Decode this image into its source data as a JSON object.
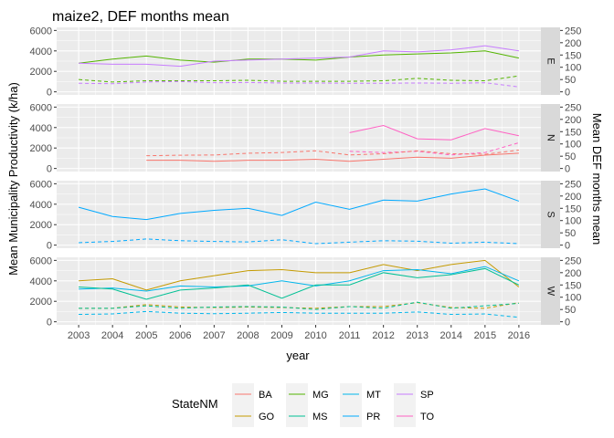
{
  "chart_data": {
    "type": "line",
    "title": "maize2, DEF months mean",
    "xlabel": "year",
    "ylabel": "Mean Municipality Productivity (k/ha)",
    "ylabel_right": "Mean DEF months mean",
    "x": [
      2003,
      2004,
      2005,
      2006,
      2007,
      2008,
      2009,
      2010,
      2011,
      2012,
      2013,
      2014,
      2015,
      2016
    ],
    "ylim_left": [
      0,
      6000
    ],
    "ylim_right": [
      0,
      250
    ],
    "yticks_left": [
      "0",
      "2000",
      "4000",
      "6000"
    ],
    "yticks_right": [
      "0",
      "50",
      "100",
      "150",
      "200",
      "250"
    ],
    "legend": {
      "title": "StateNM",
      "position": "bottom",
      "entries": [
        {
          "name": "BA",
          "color": "#F8766D"
        },
        {
          "name": "GO",
          "color": "#C49A00"
        },
        {
          "name": "MG",
          "color": "#53B400"
        },
        {
          "name": "MS",
          "color": "#00C094"
        },
        {
          "name": "MT",
          "color": "#00B6EB"
        },
        {
          "name": "PR",
          "color": "#00A9FF"
        },
        {
          "name": "SP",
          "color": "#C77CFF"
        },
        {
          "name": "TO",
          "color": "#FF61C3"
        }
      ]
    },
    "panels": [
      {
        "label": "E",
        "series": [
          {
            "name": "MG",
            "color": "#53B400",
            "dash": false,
            "values": [
              2800,
              3200,
              3500,
              3100,
              2900,
              3200,
              3200,
              3100,
              3400,
              3600,
              3700,
              3800,
              4000,
              3300
            ]
          },
          {
            "name": "SP",
            "color": "#C77CFF",
            "dash": false,
            "values": [
              2800,
              2700,
              2700,
              2500,
              3000,
              3100,
              3200,
              3300,
              3400,
              4000,
              3900,
              4100,
              4500,
              4000
            ]
          },
          {
            "name": "MG",
            "color": "#53B400",
            "dash": true,
            "values": [
              50,
              40,
              45,
              45,
              45,
              47,
              43,
              43,
              43,
              45,
              55,
              47,
              45,
              65
            ]
          },
          {
            "name": "SP",
            "color": "#C77CFF",
            "dash": true,
            "values": [
              35,
              33,
              40,
              42,
              37,
              38,
              36,
              36,
              35,
              35,
              36,
              35,
              37,
              20
            ]
          }
        ]
      },
      {
        "label": "N",
        "series": [
          {
            "name": "TO",
            "color": "#FF61C3",
            "dash": false,
            "values": [
              null,
              null,
              null,
              null,
              null,
              null,
              null,
              null,
              3500,
              4200,
              2900,
              2800,
              3900,
              3200
            ]
          },
          {
            "name": "BA",
            "color": "#F8766D",
            "dash": false,
            "values": [
              null,
              null,
              800,
              800,
              700,
              800,
              800,
              900,
              700,
              900,
              1100,
              1000,
              1300,
              1500
            ]
          },
          {
            "name": "TO",
            "color": "#FF61C3",
            "dash": true,
            "values": [
              null,
              null,
              null,
              null,
              null,
              null,
              null,
              null,
              70,
              65,
              70,
              55,
              65,
              105
            ]
          },
          {
            "name": "BA",
            "color": "#F8766D",
            "dash": true,
            "values": [
              null,
              null,
              52,
              54,
              55,
              62,
              65,
              72,
              55,
              60,
              72,
              60,
              58,
              75
            ]
          }
        ]
      },
      {
        "label": "S",
        "series": [
          {
            "name": "PR",
            "color": "#00A9FF",
            "dash": false,
            "values": [
              3700,
              2800,
              2500,
              3100,
              3400,
              3600,
              2900,
              4200,
              3500,
              4400,
              4300,
              5000,
              5500,
              4300
            ]
          },
          {
            "name": "PR",
            "color": "#00A9FF",
            "dash": true,
            "values": [
              10,
              15,
              25,
              18,
              15,
              13,
              22,
              6,
              12,
              18,
              16,
              8,
              12,
              6
            ]
          }
        ]
      },
      {
        "label": "W",
        "series": [
          {
            "name": "GO",
            "color": "#C49A00",
            "dash": false,
            "values": [
              4000,
              4200,
              3100,
              4000,
              4500,
              5000,
              5100,
              4800,
              4800,
              5600,
              5000,
              5600,
              6000,
              3400
            ]
          },
          {
            "name": "MT",
            "color": "#00B6EB",
            "dash": false,
            "values": [
              3200,
              3300,
              3000,
              3500,
              3400,
              3500,
              4000,
              3500,
              4000,
              5000,
              5100,
              4700,
              5400,
              4000
            ]
          },
          {
            "name": "MS",
            "color": "#00C094",
            "dash": false,
            "values": [
              3400,
              3200,
              2200,
              3100,
              3300,
              3600,
              2300,
              3600,
              3600,
              4800,
              4300,
              4600,
              5200,
              3600
            ]
          },
          {
            "name": "GO",
            "color": "#C49A00",
            "dash": true,
            "values": [
              55,
              55,
              70,
              60,
              58,
              60,
              58,
              55,
              62,
              62,
              78,
              58,
              55,
              78
            ]
          },
          {
            "name": "MS",
            "color": "#00C094",
            "dash": true,
            "values": [
              55,
              55,
              65,
              55,
              60,
              62,
              60,
              50,
              62,
              55,
              80,
              55,
              65,
              75
            ]
          },
          {
            "name": "MT",
            "color": "#00B6EB",
            "dash": true,
            "values": [
              30,
              32,
              42,
              35,
              33,
              35,
              38,
              35,
              35,
              35,
              40,
              30,
              32,
              18
            ]
          }
        ]
      }
    ]
  }
}
